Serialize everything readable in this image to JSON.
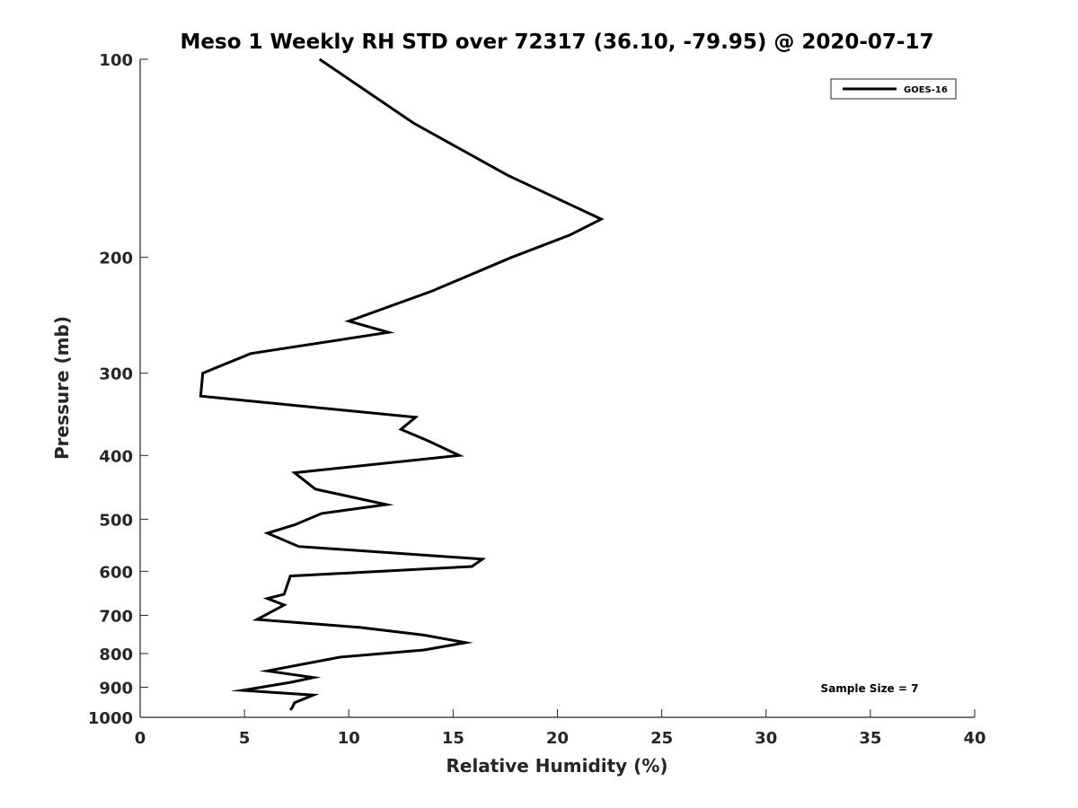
{
  "chart_data": {
    "type": "line",
    "title": "Meso 1 Weekly RH STD over 72317 (36.10, -79.95) @ 2020-07-17",
    "xlabel": "Relative Humidity (%)",
    "ylabel": "Pressure (mb)",
    "xlim": [
      0,
      40
    ],
    "ylim": [
      100,
      1000
    ],
    "y_scale": "log",
    "y_reversed": true,
    "x_ticks": [
      0,
      5,
      10,
      15,
      20,
      25,
      30,
      35,
      40
    ],
    "y_ticks": [
      100,
      200,
      300,
      400,
      500,
      600,
      700,
      800,
      900,
      1000
    ],
    "grid": false,
    "legend_position": "top-right",
    "series": [
      {
        "name": "GOES-16",
        "color": "#000000",
        "points": [
          [
            8.6,
            100
          ],
          [
            13.1,
            125
          ],
          [
            17.6,
            150
          ],
          [
            22.1,
            175
          ],
          [
            20.6,
            185
          ],
          [
            17.8,
            200
          ],
          [
            14.0,
            225
          ],
          [
            10.0,
            250
          ],
          [
            11.9,
            260
          ],
          [
            5.3,
            280
          ],
          [
            3.0,
            300
          ],
          [
            2.9,
            325
          ],
          [
            13.2,
            350
          ],
          [
            12.5,
            365
          ],
          [
            13.8,
            380
          ],
          [
            15.3,
            400
          ],
          [
            7.4,
            425
          ],
          [
            8.4,
            450
          ],
          [
            11.8,
            475
          ],
          [
            8.7,
            490
          ],
          [
            7.4,
            510
          ],
          [
            6.1,
            525
          ],
          [
            7.6,
            550
          ],
          [
            16.4,
            575
          ],
          [
            15.9,
            590
          ],
          [
            7.2,
            610
          ],
          [
            6.9,
            650
          ],
          [
            6.1,
            660
          ],
          [
            6.9,
            675
          ],
          [
            5.6,
            710
          ],
          [
            10.5,
            730
          ],
          [
            13.6,
            750
          ],
          [
            15.6,
            770
          ],
          [
            13.6,
            790
          ],
          [
            9.6,
            810
          ],
          [
            6.1,
            850
          ],
          [
            8.3,
            870
          ],
          [
            7.2,
            885
          ],
          [
            4.9,
            910
          ],
          [
            8.3,
            925
          ],
          [
            7.4,
            950
          ],
          [
            7.3,
            965
          ],
          [
            7.2,
            975
          ]
        ]
      }
    ],
    "annotations": [
      "Sample Size = 7"
    ]
  }
}
